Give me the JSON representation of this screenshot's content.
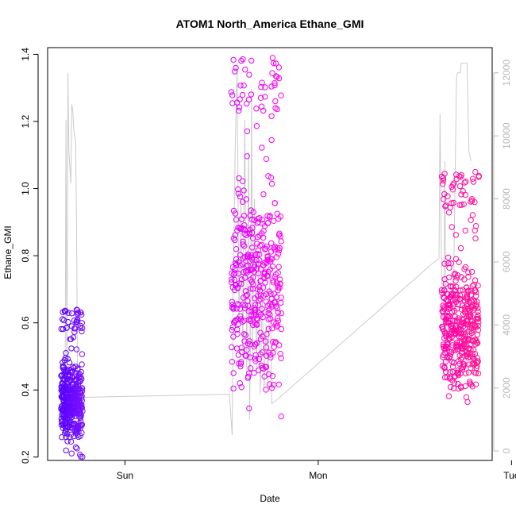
{
  "chart_data": {
    "type": "scatter",
    "title": "ATOM1 North_America Ethane_GMI",
    "xlabel": "Date",
    "ylabel": "Ethane_GMI",
    "x_ticks": [
      "Sun",
      "Mon",
      "Tue"
    ],
    "xlim": [
      -0.4,
      1.9
    ],
    "ylim": [
      0.19,
      1.42
    ],
    "y_ticks": [
      0.2,
      0.4,
      0.6,
      0.8,
      1.0,
      1.2,
      1.4
    ],
    "y2_ticks": [
      0,
      2000,
      4000,
      6000,
      8000,
      10000,
      12000
    ],
    "y2lim": [
      -300,
      12800
    ],
    "colors": {
      "series_start": "#5500ff",
      "series_mid": "#ee00ee",
      "series_end": "#ff1493",
      "altitude_line": "#cccccc"
    },
    "clusters": [
      {
        "x_start": -0.33,
        "x_end": -0.22,
        "y_min": 0.2,
        "y_max": 0.64,
        "color_from": "#5500ff",
        "color_to": "#7a10ff"
      },
      {
        "x_start": 0.55,
        "x_end": 0.81,
        "y_min": 0.27,
        "y_max": 1.4,
        "color_from": "#dd00ff",
        "color_to": "#ff00ee"
      },
      {
        "x_start": 1.64,
        "x_end": 1.83,
        "y_min": 0.31,
        "y_max": 1.05,
        "color_from": "#ff00aa",
        "color_to": "#ff1493"
      }
    ],
    "altitude_series": [
      [
        -0.33,
        1500
      ],
      [
        -0.32,
        3000
      ],
      [
        -0.31,
        700
      ],
      [
        -0.305,
        10500
      ],
      [
        -0.3,
        2000
      ],
      [
        -0.295,
        12000
      ],
      [
        -0.29,
        9500
      ],
      [
        -0.28,
        8500
      ],
      [
        -0.275,
        11000
      ],
      [
        -0.27,
        10800
      ],
      [
        -0.265,
        10200
      ],
      [
        -0.26,
        10000
      ],
      [
        -0.255,
        9800
      ],
      [
        -0.25,
        7000
      ],
      [
        -0.245,
        1800
      ],
      [
        -0.24,
        1700
      ],
      [
        0.54,
        1800
      ],
      [
        0.555,
        500
      ],
      [
        0.56,
        5000
      ],
      [
        0.57,
        9500
      ],
      [
        0.58,
        12200
      ],
      [
        0.59,
        4000
      ],
      [
        0.6,
        8000
      ],
      [
        0.61,
        3000
      ],
      [
        0.62,
        10500
      ],
      [
        0.63,
        2500
      ],
      [
        0.64,
        9500
      ],
      [
        0.645,
        1000
      ],
      [
        0.65,
        4000
      ],
      [
        0.655,
        11500
      ],
      [
        0.66,
        3000
      ],
      [
        0.67,
        8000
      ],
      [
        0.68,
        2500
      ],
      [
        0.69,
        6000
      ],
      [
        0.7,
        1800
      ],
      [
        0.71,
        5000
      ],
      [
        0.72,
        2000
      ],
      [
        0.73,
        4000
      ],
      [
        0.74,
        2200
      ],
      [
        0.75,
        5500
      ],
      [
        0.76,
        1500
      ],
      [
        0.78,
        1600
      ],
      [
        0.8,
        1700
      ],
      [
        1.6,
        6000
      ],
      [
        1.625,
        6100
      ],
      [
        1.63,
        10700
      ],
      [
        1.64,
        4200
      ],
      [
        1.65,
        4400
      ],
      [
        1.655,
        9200
      ],
      [
        1.66,
        4500
      ],
      [
        1.7,
        5000
      ],
      [
        1.715,
        11800
      ],
      [
        1.72,
        12000
      ],
      [
        1.735,
        12000
      ],
      [
        1.74,
        12300
      ],
      [
        1.77,
        12300
      ],
      [
        1.775,
        10800
      ],
      [
        1.78,
        9500
      ],
      [
        1.79,
        9200
      ]
    ]
  }
}
